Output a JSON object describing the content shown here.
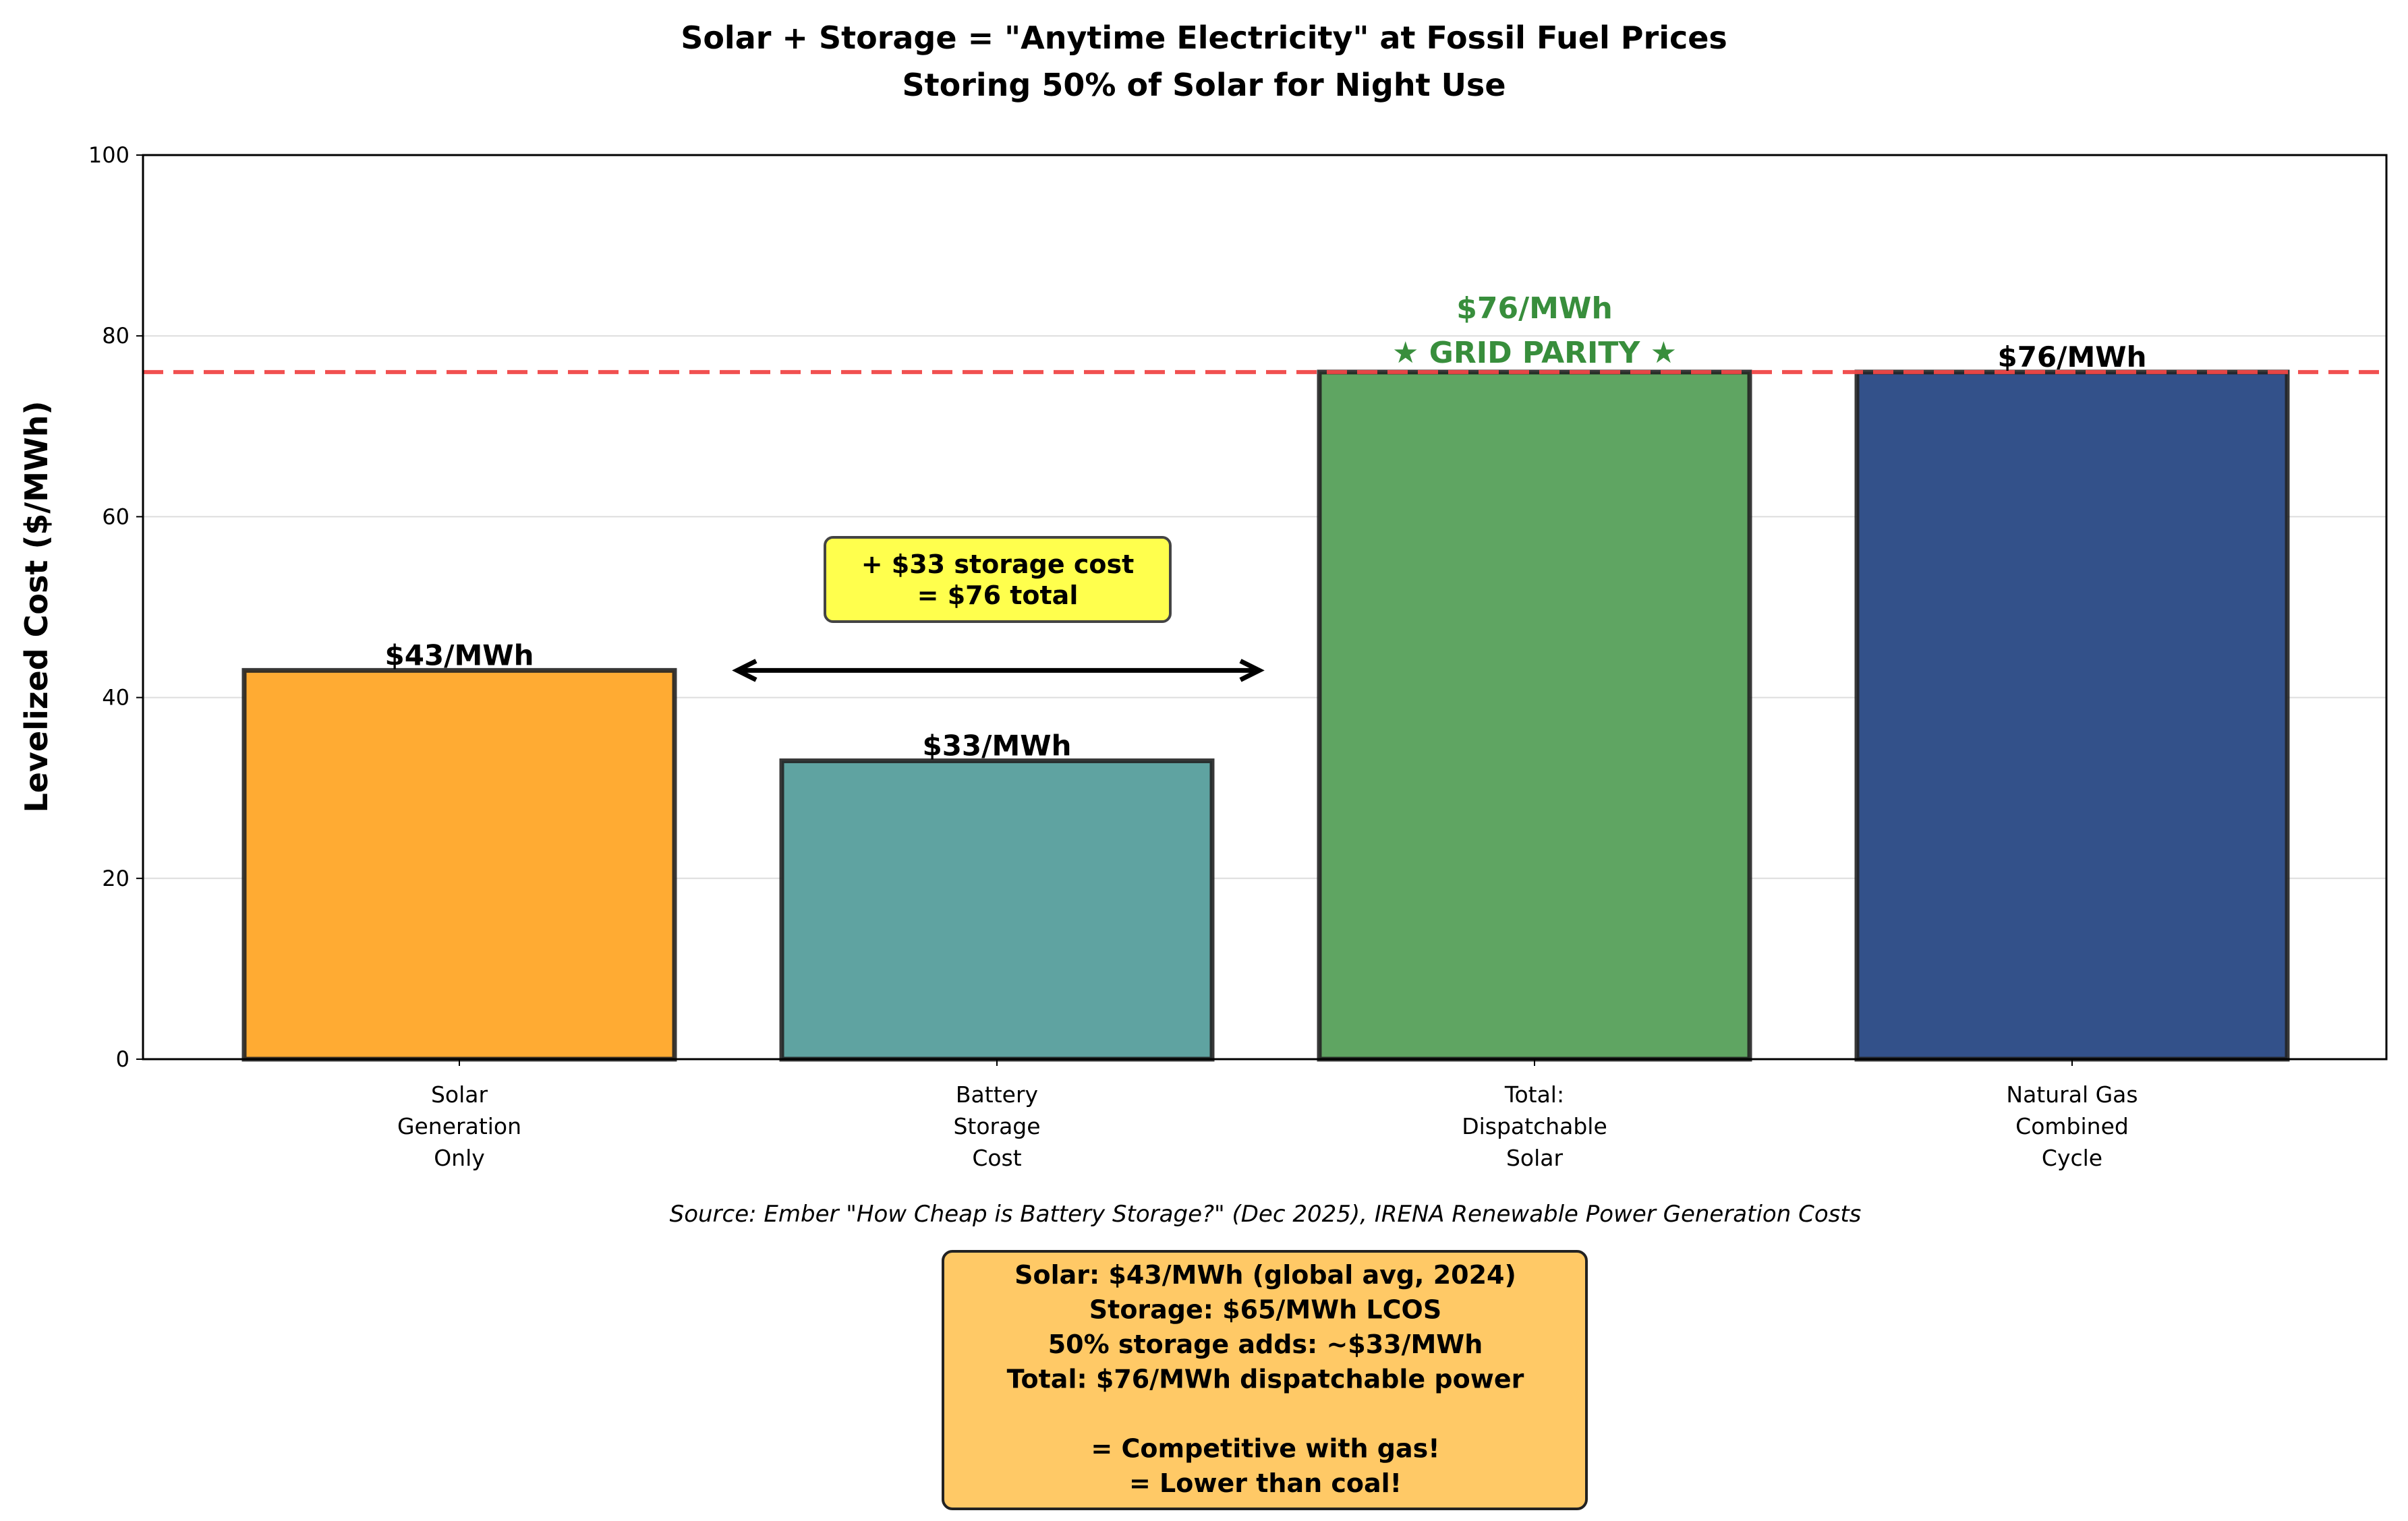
{
  "chart_data": {
    "type": "bar",
    "title": "Solar + Storage = \"Anytime Electricity\" at Fossil Fuel Prices",
    "subtitle": "Storing 50% of Solar for Night Use",
    "ylabel": "Levelized Cost ($/MWh)",
    "xlabel": "",
    "ylim": [
      0,
      100
    ],
    "yticks": [
      "0",
      "20",
      "40",
      "60",
      "80",
      "100"
    ],
    "grid": true,
    "categories": [
      [
        "Solar",
        "Generation",
        "Only"
      ],
      [
        "Battery",
        "Storage",
        "Cost"
      ],
      [
        "Total:",
        "Dispatchable",
        "Solar"
      ],
      [
        "Natural Gas",
        "Combined",
        "Cycle"
      ]
    ],
    "values": [
      43,
      33,
      76,
      76
    ],
    "colors": [
      "#ffab33",
      "#5fa3a1",
      "#5fa562",
      "#33518a"
    ],
    "value_labels": [
      "$43/MWh",
      "$33/MWh",
      "$76/MWh",
      "$76/MWh"
    ],
    "reference_line": {
      "value": 76,
      "color": "#f04747"
    },
    "parity_label": "★ GRID PARITY ★",
    "parity_color": "#388e3c",
    "callout": [
      "+ $33 storage cost",
      "= $76 total"
    ],
    "arrow": {
      "from": 0.5,
      "to": 1.5,
      "y": 43
    },
    "summary_box": [
      "Solar: $43/MWh (global avg, 2024)",
      "Storage: $65/MWh LCOS",
      "50% storage adds: ~$33/MWh",
      "Total: $76/MWh dispatchable power",
      "",
      "= Competitive with gas!",
      "= Lower than coal!"
    ],
    "source": "Source: Ember \"How Cheap is Battery Storage?\" (Dec 2025), IRENA Renewable Power Generation Costs"
  }
}
